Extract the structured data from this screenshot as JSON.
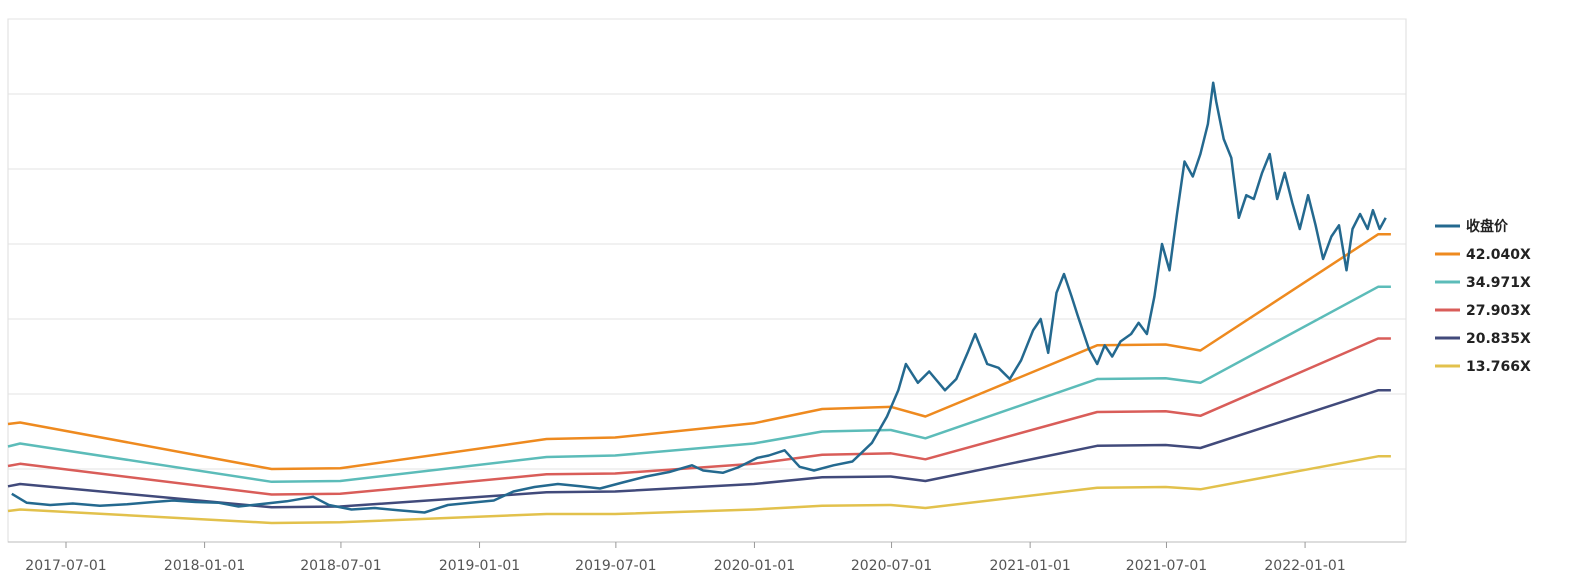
{
  "chart_data": {
    "type": "line",
    "title": "",
    "xlabel": "",
    "ylabel": "",
    "x_tick_labels": [
      "2017-07-01",
      "2018-01-01",
      "2018-07-01",
      "2019-01-01",
      "2019-07-01",
      "2020-01-01",
      "2020-07-01",
      "2021-01-01",
      "2021-07-01",
      "2022-01-01"
    ],
    "xlim": [
      "2017-04-15",
      "2022-05-15"
    ],
    "ylim": [
      0,
      7
    ],
    "y_gridlines": 7,
    "y_tick_labels_visible": false,
    "grid": true,
    "legend_position": "right",
    "series": [
      {
        "name": "收盘价",
        "color": "#24698f",
        "line_width": 2.5,
        "points": [
          [
            "2017-04-20",
            0.67
          ],
          [
            "2017-05-10",
            0.55
          ],
          [
            "2017-06-10",
            0.52
          ],
          [
            "2017-07-10",
            0.54
          ],
          [
            "2017-08-15",
            0.51
          ],
          [
            "2017-09-20",
            0.53
          ],
          [
            "2017-10-25",
            0.56
          ],
          [
            "2017-11-20",
            0.58
          ],
          [
            "2017-12-20",
            0.56
          ],
          [
            "2018-01-20",
            0.55
          ],
          [
            "2018-02-15",
            0.5
          ],
          [
            "2018-03-15",
            0.53
          ],
          [
            "2018-04-20",
            0.57
          ],
          [
            "2018-05-25",
            0.63
          ],
          [
            "2018-06-15",
            0.52
          ],
          [
            "2018-07-15",
            0.46
          ],
          [
            "2018-08-15",
            0.48
          ],
          [
            "2018-09-15",
            0.45
          ],
          [
            "2018-10-20",
            0.42
          ],
          [
            "2018-11-20",
            0.52
          ],
          [
            "2018-12-20",
            0.55
          ],
          [
            "2019-01-20",
            0.58
          ],
          [
            "2019-02-15",
            0.7
          ],
          [
            "2019-03-15",
            0.76
          ],
          [
            "2019-04-15",
            0.8
          ],
          [
            "2019-05-15",
            0.77
          ],
          [
            "2019-06-10",
            0.74
          ],
          [
            "2019-07-10",
            0.82
          ],
          [
            "2019-08-10",
            0.9
          ],
          [
            "2019-09-10",
            0.96
          ],
          [
            "2019-10-10",
            1.05
          ],
          [
            "2019-10-25",
            0.98
          ],
          [
            "2019-11-20",
            0.95
          ],
          [
            "2019-12-10",
            1.02
          ],
          [
            "2020-01-05",
            1.15
          ],
          [
            "2020-01-20",
            1.18
          ],
          [
            "2020-02-10",
            1.25
          ],
          [
            "2020-03-01",
            1.03
          ],
          [
            "2020-03-20",
            0.98
          ],
          [
            "2020-04-15",
            1.05
          ],
          [
            "2020-05-10",
            1.1
          ],
          [
            "2020-06-05",
            1.35
          ],
          [
            "2020-06-25",
            1.7
          ],
          [
            "2020-07-10",
            2.05
          ],
          [
            "2020-07-20",
            2.4
          ],
          [
            "2020-08-05",
            2.15
          ],
          [
            "2020-08-20",
            2.3
          ],
          [
            "2020-09-10",
            2.05
          ],
          [
            "2020-09-25",
            2.2
          ],
          [
            "2020-10-10",
            2.55
          ],
          [
            "2020-10-20",
            2.8
          ],
          [
            "2020-11-05",
            2.4
          ],
          [
            "2020-11-20",
            2.35
          ],
          [
            "2020-12-05",
            2.2
          ],
          [
            "2020-12-20",
            2.45
          ],
          [
            "2021-01-05",
            2.85
          ],
          [
            "2021-01-15",
            3.0
          ],
          [
            "2021-01-25",
            2.55
          ],
          [
            "2021-02-05",
            3.35
          ],
          [
            "2021-02-15",
            3.6
          ],
          [
            "2021-02-25",
            3.3
          ],
          [
            "2021-03-05",
            3.05
          ],
          [
            "2021-03-20",
            2.6
          ],
          [
            "2021-03-31",
            2.4
          ],
          [
            "2021-04-10",
            2.65
          ],
          [
            "2021-04-20",
            2.5
          ],
          [
            "2021-05-01",
            2.7
          ],
          [
            "2021-05-15",
            2.8
          ],
          [
            "2021-05-25",
            2.95
          ],
          [
            "2021-06-05",
            2.8
          ],
          [
            "2021-06-15",
            3.3
          ],
          [
            "2021-06-25",
            4.0
          ],
          [
            "2021-07-05",
            3.65
          ],
          [
            "2021-07-15",
            4.4
          ],
          [
            "2021-07-25",
            5.1
          ],
          [
            "2021-08-05",
            4.9
          ],
          [
            "2021-08-15",
            5.2
          ],
          [
            "2021-08-25",
            5.6
          ],
          [
            "2021-09-01",
            6.15
          ],
          [
            "2021-09-05",
            5.9
          ],
          [
            "2021-09-15",
            5.4
          ],
          [
            "2021-09-25",
            5.15
          ],
          [
            "2021-10-05",
            4.35
          ],
          [
            "2021-10-15",
            4.65
          ],
          [
            "2021-10-25",
            4.6
          ],
          [
            "2021-11-05",
            4.95
          ],
          [
            "2021-11-15",
            5.2
          ],
          [
            "2021-11-25",
            4.6
          ],
          [
            "2021-12-05",
            4.95
          ],
          [
            "2021-12-15",
            4.55
          ],
          [
            "2021-12-25",
            4.2
          ],
          [
            "2022-01-05",
            4.65
          ],
          [
            "2022-01-15",
            4.25
          ],
          [
            "2022-01-25",
            3.8
          ],
          [
            "2022-02-05",
            4.1
          ],
          [
            "2022-02-15",
            4.25
          ],
          [
            "2022-02-25",
            3.65
          ],
          [
            "2022-03-05",
            4.2
          ],
          [
            "2022-03-15",
            4.4
          ],
          [
            "2022-03-25",
            4.2
          ],
          [
            "2022-04-01",
            4.45
          ],
          [
            "2022-04-10",
            4.2
          ],
          [
            "2022-04-18",
            4.35
          ]
        ]
      },
      {
        "name": "42.040X",
        "color": "#ee8a1f",
        "line_width": 2.5,
        "points": [
          [
            "2017-04-15",
            1.6
          ],
          [
            "2017-05-01",
            1.62
          ],
          [
            "2018-03-31",
            1.0
          ],
          [
            "2018-06-30",
            1.01
          ],
          [
            "2019-03-31",
            1.4
          ],
          [
            "2019-06-30",
            1.42
          ],
          [
            "2019-12-31",
            1.61
          ],
          [
            "2020-03-31",
            1.8
          ],
          [
            "2020-06-30",
            1.83
          ],
          [
            "2020-08-15",
            1.7
          ],
          [
            "2021-03-31",
            2.65
          ],
          [
            "2021-06-30",
            2.66
          ],
          [
            "2021-08-15",
            2.58
          ],
          [
            "2022-04-08",
            4.13
          ],
          [
            "2022-04-25",
            4.13
          ]
        ]
      },
      {
        "name": "34.971X",
        "color": "#5cbcb9",
        "line_width": 2.5,
        "points": [
          [
            "2017-04-15",
            1.3
          ],
          [
            "2017-05-01",
            1.34
          ],
          [
            "2018-03-31",
            0.83
          ],
          [
            "2018-06-30",
            0.84
          ],
          [
            "2019-03-31",
            1.16
          ],
          [
            "2019-06-30",
            1.18
          ],
          [
            "2019-12-31",
            1.34
          ],
          [
            "2020-03-31",
            1.5
          ],
          [
            "2020-06-30",
            1.52
          ],
          [
            "2020-08-15",
            1.41
          ],
          [
            "2021-03-31",
            2.2
          ],
          [
            "2021-06-30",
            2.21
          ],
          [
            "2021-08-15",
            2.15
          ],
          [
            "2022-04-08",
            3.43
          ],
          [
            "2022-04-25",
            3.43
          ]
        ]
      },
      {
        "name": "27.903X",
        "color": "#d95d59",
        "line_width": 2.5,
        "points": [
          [
            "2017-04-15",
            1.04
          ],
          [
            "2017-05-01",
            1.07
          ],
          [
            "2018-03-31",
            0.66
          ],
          [
            "2018-06-30",
            0.67
          ],
          [
            "2019-03-31",
            0.93
          ],
          [
            "2019-06-30",
            0.94
          ],
          [
            "2019-12-31",
            1.07
          ],
          [
            "2020-03-31",
            1.19
          ],
          [
            "2020-06-30",
            1.21
          ],
          [
            "2020-08-15",
            1.13
          ],
          [
            "2021-03-31",
            1.76
          ],
          [
            "2021-06-30",
            1.77
          ],
          [
            "2021-08-15",
            1.71
          ],
          [
            "2022-04-08",
            2.74
          ],
          [
            "2022-04-25",
            2.74
          ]
        ]
      },
      {
        "name": "20.835X",
        "color": "#414a7b",
        "line_width": 2.5,
        "points": [
          [
            "2017-04-15",
            0.77
          ],
          [
            "2017-05-01",
            0.8
          ],
          [
            "2018-03-31",
            0.49
          ],
          [
            "2018-06-30",
            0.5
          ],
          [
            "2019-03-31",
            0.69
          ],
          [
            "2019-06-30",
            0.7
          ],
          [
            "2019-12-31",
            0.8
          ],
          [
            "2020-03-31",
            0.89
          ],
          [
            "2020-06-30",
            0.9
          ],
          [
            "2020-08-15",
            0.84
          ],
          [
            "2021-03-31",
            1.31
          ],
          [
            "2021-06-30",
            1.32
          ],
          [
            "2021-08-15",
            1.28
          ],
          [
            "2022-04-08",
            2.05
          ],
          [
            "2022-04-25",
            2.05
          ]
        ]
      },
      {
        "name": "13.766X",
        "color": "#e2c14c",
        "line_width": 2.5,
        "points": [
          [
            "2017-04-15",
            0.44
          ],
          [
            "2017-05-01",
            0.46
          ],
          [
            "2018-03-31",
            0.28
          ],
          [
            "2018-06-30",
            0.29
          ],
          [
            "2019-03-31",
            0.4
          ],
          [
            "2019-06-30",
            0.4
          ],
          [
            "2019-12-31",
            0.46
          ],
          [
            "2020-03-31",
            0.51
          ],
          [
            "2020-06-30",
            0.52
          ],
          [
            "2020-08-15",
            0.48
          ],
          [
            "2021-03-31",
            0.75
          ],
          [
            "2021-06-30",
            0.76
          ],
          [
            "2021-08-15",
            0.73
          ],
          [
            "2022-04-08",
            1.17
          ],
          [
            "2022-04-25",
            1.17
          ]
        ]
      }
    ]
  }
}
